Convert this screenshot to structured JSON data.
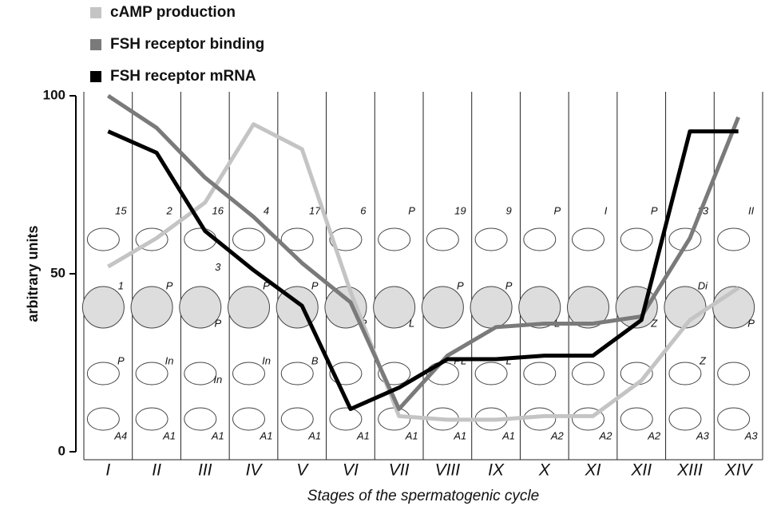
{
  "chart_data": {
    "type": "line",
    "x_label": "Stages of the spermatogenic cycle",
    "y_label": "arbitrary units",
    "categories": [
      "I",
      "II",
      "III",
      "IV",
      "V",
      "VI",
      "VII",
      "VIII",
      "IX",
      "X",
      "XI",
      "XII",
      "XIII",
      "XIV"
    ],
    "series": [
      {
        "name": "cAMP production",
        "color": "#c4c4c4",
        "values": [
          52,
          60,
          70,
          92,
          85,
          45,
          10,
          9,
          9,
          10,
          10,
          20,
          37,
          46
        ]
      },
      {
        "name": "FSH receptor binding",
        "color": "#7a7a7a",
        "values": [
          100,
          91,
          77,
          66,
          53,
          42,
          12,
          27,
          35,
          36,
          36,
          38,
          60,
          94
        ]
      },
      {
        "name": "FSH receptor mRNA",
        "color": "#000000",
        "values": [
          90,
          84,
          62,
          51,
          41,
          12,
          18,
          26,
          26,
          27,
          27,
          37,
          90,
          90
        ]
      }
    ],
    "ylim": [
      0,
      100
    ],
    "yticks": [
      0,
      50,
      100
    ],
    "cell_labels": [
      [
        "15",
        "1",
        "P",
        "A4"
      ],
      [
        "2",
        "P",
        "In",
        "A1"
      ],
      [
        "16",
        "3",
        "P",
        "In",
        "A1"
      ],
      [
        "4",
        "P",
        "In",
        "A1"
      ],
      [
        "17",
        "P",
        "B",
        "A1"
      ],
      [
        "6",
        "P",
        "A1"
      ],
      [
        "P",
        "L",
        "A1"
      ],
      [
        "19",
        "P",
        "PL",
        "A1"
      ],
      [
        "9",
        "P",
        "L",
        "A1"
      ],
      [
        "P",
        "L",
        "A2"
      ],
      [
        "I",
        "A2"
      ],
      [
        "P",
        "Z",
        "A2"
      ],
      [
        "13",
        "Di",
        "Z",
        "A3"
      ],
      [
        "II",
        "P",
        "A3"
      ]
    ]
  }
}
